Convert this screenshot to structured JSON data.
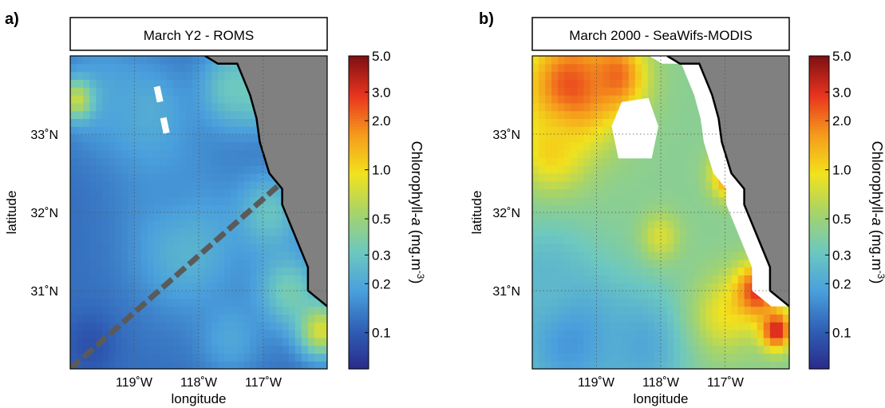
{
  "chart_data": [
    {
      "type": "heatmap",
      "panel_label": "a)",
      "title": "March Y2 - ROMS",
      "xlabel": "longitude",
      "ylabel": "latitude",
      "xlim": [
        -120.0,
        -116.0
      ],
      "ylim": [
        30.0,
        34.0
      ],
      "x_ticks": [
        -119,
        -118,
        -117
      ],
      "x_tick_labels": [
        "119˚W",
        "118˚W",
        "117˚W"
      ],
      "y_ticks": [
        31,
        32,
        33
      ],
      "y_tick_labels": [
        "31˚N",
        "32˚N",
        "33˚N"
      ],
      "grid": true,
      "coastline": [
        [
          -117.9,
          34.0
        ],
        [
          -117.7,
          33.9
        ],
        [
          -117.4,
          33.9
        ],
        [
          -117.3,
          33.7
        ],
        [
          -117.2,
          33.5
        ],
        [
          -117.1,
          33.2
        ],
        [
          -117.05,
          32.9
        ],
        [
          -116.9,
          32.5
        ],
        [
          -116.7,
          32.3
        ],
        [
          -116.7,
          32.1
        ],
        [
          -116.55,
          31.8
        ],
        [
          -116.4,
          31.5
        ],
        [
          -116.3,
          31.3
        ],
        [
          -116.3,
          31.0
        ],
        [
          -116.0,
          30.8
        ]
      ],
      "transect": [
        [
          -120.0,
          30.0
        ],
        [
          -116.75,
          32.35
        ]
      ],
      "transect_color": "#5a5a5a",
      "masked_pixels": [
        [
          -118.7,
          33.4,
          0.1,
          0.2
        ],
        [
          -118.6,
          33.0,
          0.1,
          0.2
        ]
      ],
      "field": {
        "background": 0.12,
        "blobs": [
          {
            "lon": -118.2,
            "lat": 31.6,
            "r": 0.85,
            "v": 0.25
          },
          {
            "lon": -118.5,
            "lat": 32.6,
            "r": 0.8,
            "v": 0.16
          },
          {
            "lon": -118.8,
            "lat": 33.3,
            "r": 0.6,
            "v": 0.22
          },
          {
            "lon": -119.5,
            "lat": 33.5,
            "r": 0.7,
            "v": 0.2
          },
          {
            "lon": -119.9,
            "lat": 33.45,
            "r": 0.25,
            "v": 0.7
          },
          {
            "lon": -117.5,
            "lat": 33.6,
            "r": 0.5,
            "v": 0.3
          },
          {
            "lon": -117.0,
            "lat": 33.6,
            "r": 0.5,
            "v": 0.35
          },
          {
            "lon": -116.9,
            "lat": 32.0,
            "r": 0.5,
            "v": 0.3
          },
          {
            "lon": -116.6,
            "lat": 31.0,
            "r": 0.5,
            "v": 0.35
          },
          {
            "lon": -116.1,
            "lat": 30.5,
            "r": 0.35,
            "v": 0.8
          },
          {
            "lon": -119.7,
            "lat": 30.3,
            "r": 0.4,
            "v": 0.09
          },
          {
            "lon": -117.5,
            "lat": 30.4,
            "r": 0.5,
            "v": 0.2
          }
        ]
      }
    },
    {
      "type": "heatmap",
      "panel_label": "b)",
      "title": "March 2000 - SeaWifs-MODIS",
      "xlabel": "longitude",
      "ylabel": "latitude",
      "xlim": [
        -120.0,
        -116.0
      ],
      "ylim": [
        30.0,
        34.0
      ],
      "x_ticks": [
        -119,
        -118,
        -117
      ],
      "x_tick_labels": [
        "119˚W",
        "118˚W",
        "117˚W"
      ],
      "y_ticks": [
        31,
        32,
        33
      ],
      "y_tick_labels": [
        "31˚N",
        "32˚N",
        "33˚N"
      ],
      "grid": true,
      "coastline": [
        [
          -117.9,
          34.0
        ],
        [
          -117.7,
          33.9
        ],
        [
          -117.4,
          33.9
        ],
        [
          -117.3,
          33.7
        ],
        [
          -117.2,
          33.5
        ],
        [
          -117.1,
          33.2
        ],
        [
          -117.05,
          32.9
        ],
        [
          -116.9,
          32.5
        ],
        [
          -116.7,
          32.3
        ],
        [
          -116.7,
          32.1
        ],
        [
          -116.55,
          31.8
        ],
        [
          -116.4,
          31.5
        ],
        [
          -116.3,
          31.3
        ],
        [
          -116.3,
          31.0
        ],
        [
          -116.0,
          30.8
        ]
      ],
      "masked_region": [
        [
          -118.6,
          33.4
        ],
        [
          -118.2,
          33.45
        ],
        [
          -118.05,
          33.1
        ],
        [
          -118.15,
          32.7
        ],
        [
          -118.65,
          32.7
        ],
        [
          -118.75,
          33.1
        ]
      ],
      "field": {
        "background": 0.42,
        "blobs": [
          {
            "lon": -119.4,
            "lat": 33.6,
            "r": 0.75,
            "v": 2.6
          },
          {
            "lon": -118.7,
            "lat": 33.75,
            "r": 0.45,
            "v": 2.2
          },
          {
            "lon": -119.7,
            "lat": 32.8,
            "r": 0.5,
            "v": 1.1
          },
          {
            "lon": -119.4,
            "lat": 30.4,
            "r": 0.9,
            "v": 0.16
          },
          {
            "lon": -118.3,
            "lat": 30.3,
            "r": 0.7,
            "v": 0.2
          },
          {
            "lon": -119.8,
            "lat": 31.2,
            "r": 0.6,
            "v": 0.25
          },
          {
            "lon": -117.0,
            "lat": 30.7,
            "r": 0.5,
            "v": 0.9
          },
          {
            "lon": -116.5,
            "lat": 31.0,
            "r": 0.35,
            "v": 3.0
          },
          {
            "lon": -116.2,
            "lat": 30.5,
            "r": 0.25,
            "v": 3.5
          },
          {
            "lon": -116.9,
            "lat": 32.5,
            "r": 0.3,
            "v": 2.5
          },
          {
            "lon": -118.0,
            "lat": 31.7,
            "r": 0.3,
            "v": 0.8
          }
        ]
      }
    }
  ],
  "colorbar": {
    "label_prefix": "Chlorophyll-",
    "label_italic": "a",
    "label_units": " (mg.m",
    "label_exponent": "-3",
    "label_close": ")",
    "scale": "log",
    "range": [
      0.06,
      5.0
    ],
    "ticks": [
      0.1,
      0.2,
      0.3,
      0.5,
      1.0,
      2.0,
      3.0,
      5.0
    ],
    "tick_labels": [
      "0.1",
      "0.2",
      "0.3",
      "0.5",
      "1.0",
      "2.0",
      "3.0",
      "5.0"
    ],
    "colormap": [
      "#2a2a8a",
      "#2f5fb5",
      "#4aa0dc",
      "#6cc8c0",
      "#a6d46a",
      "#f2e21c",
      "#f59a1c",
      "#e8341e",
      "#7e1014"
    ]
  },
  "colors": {
    "land": "#808080",
    "coast": "#000000",
    "grid": "#555555"
  }
}
